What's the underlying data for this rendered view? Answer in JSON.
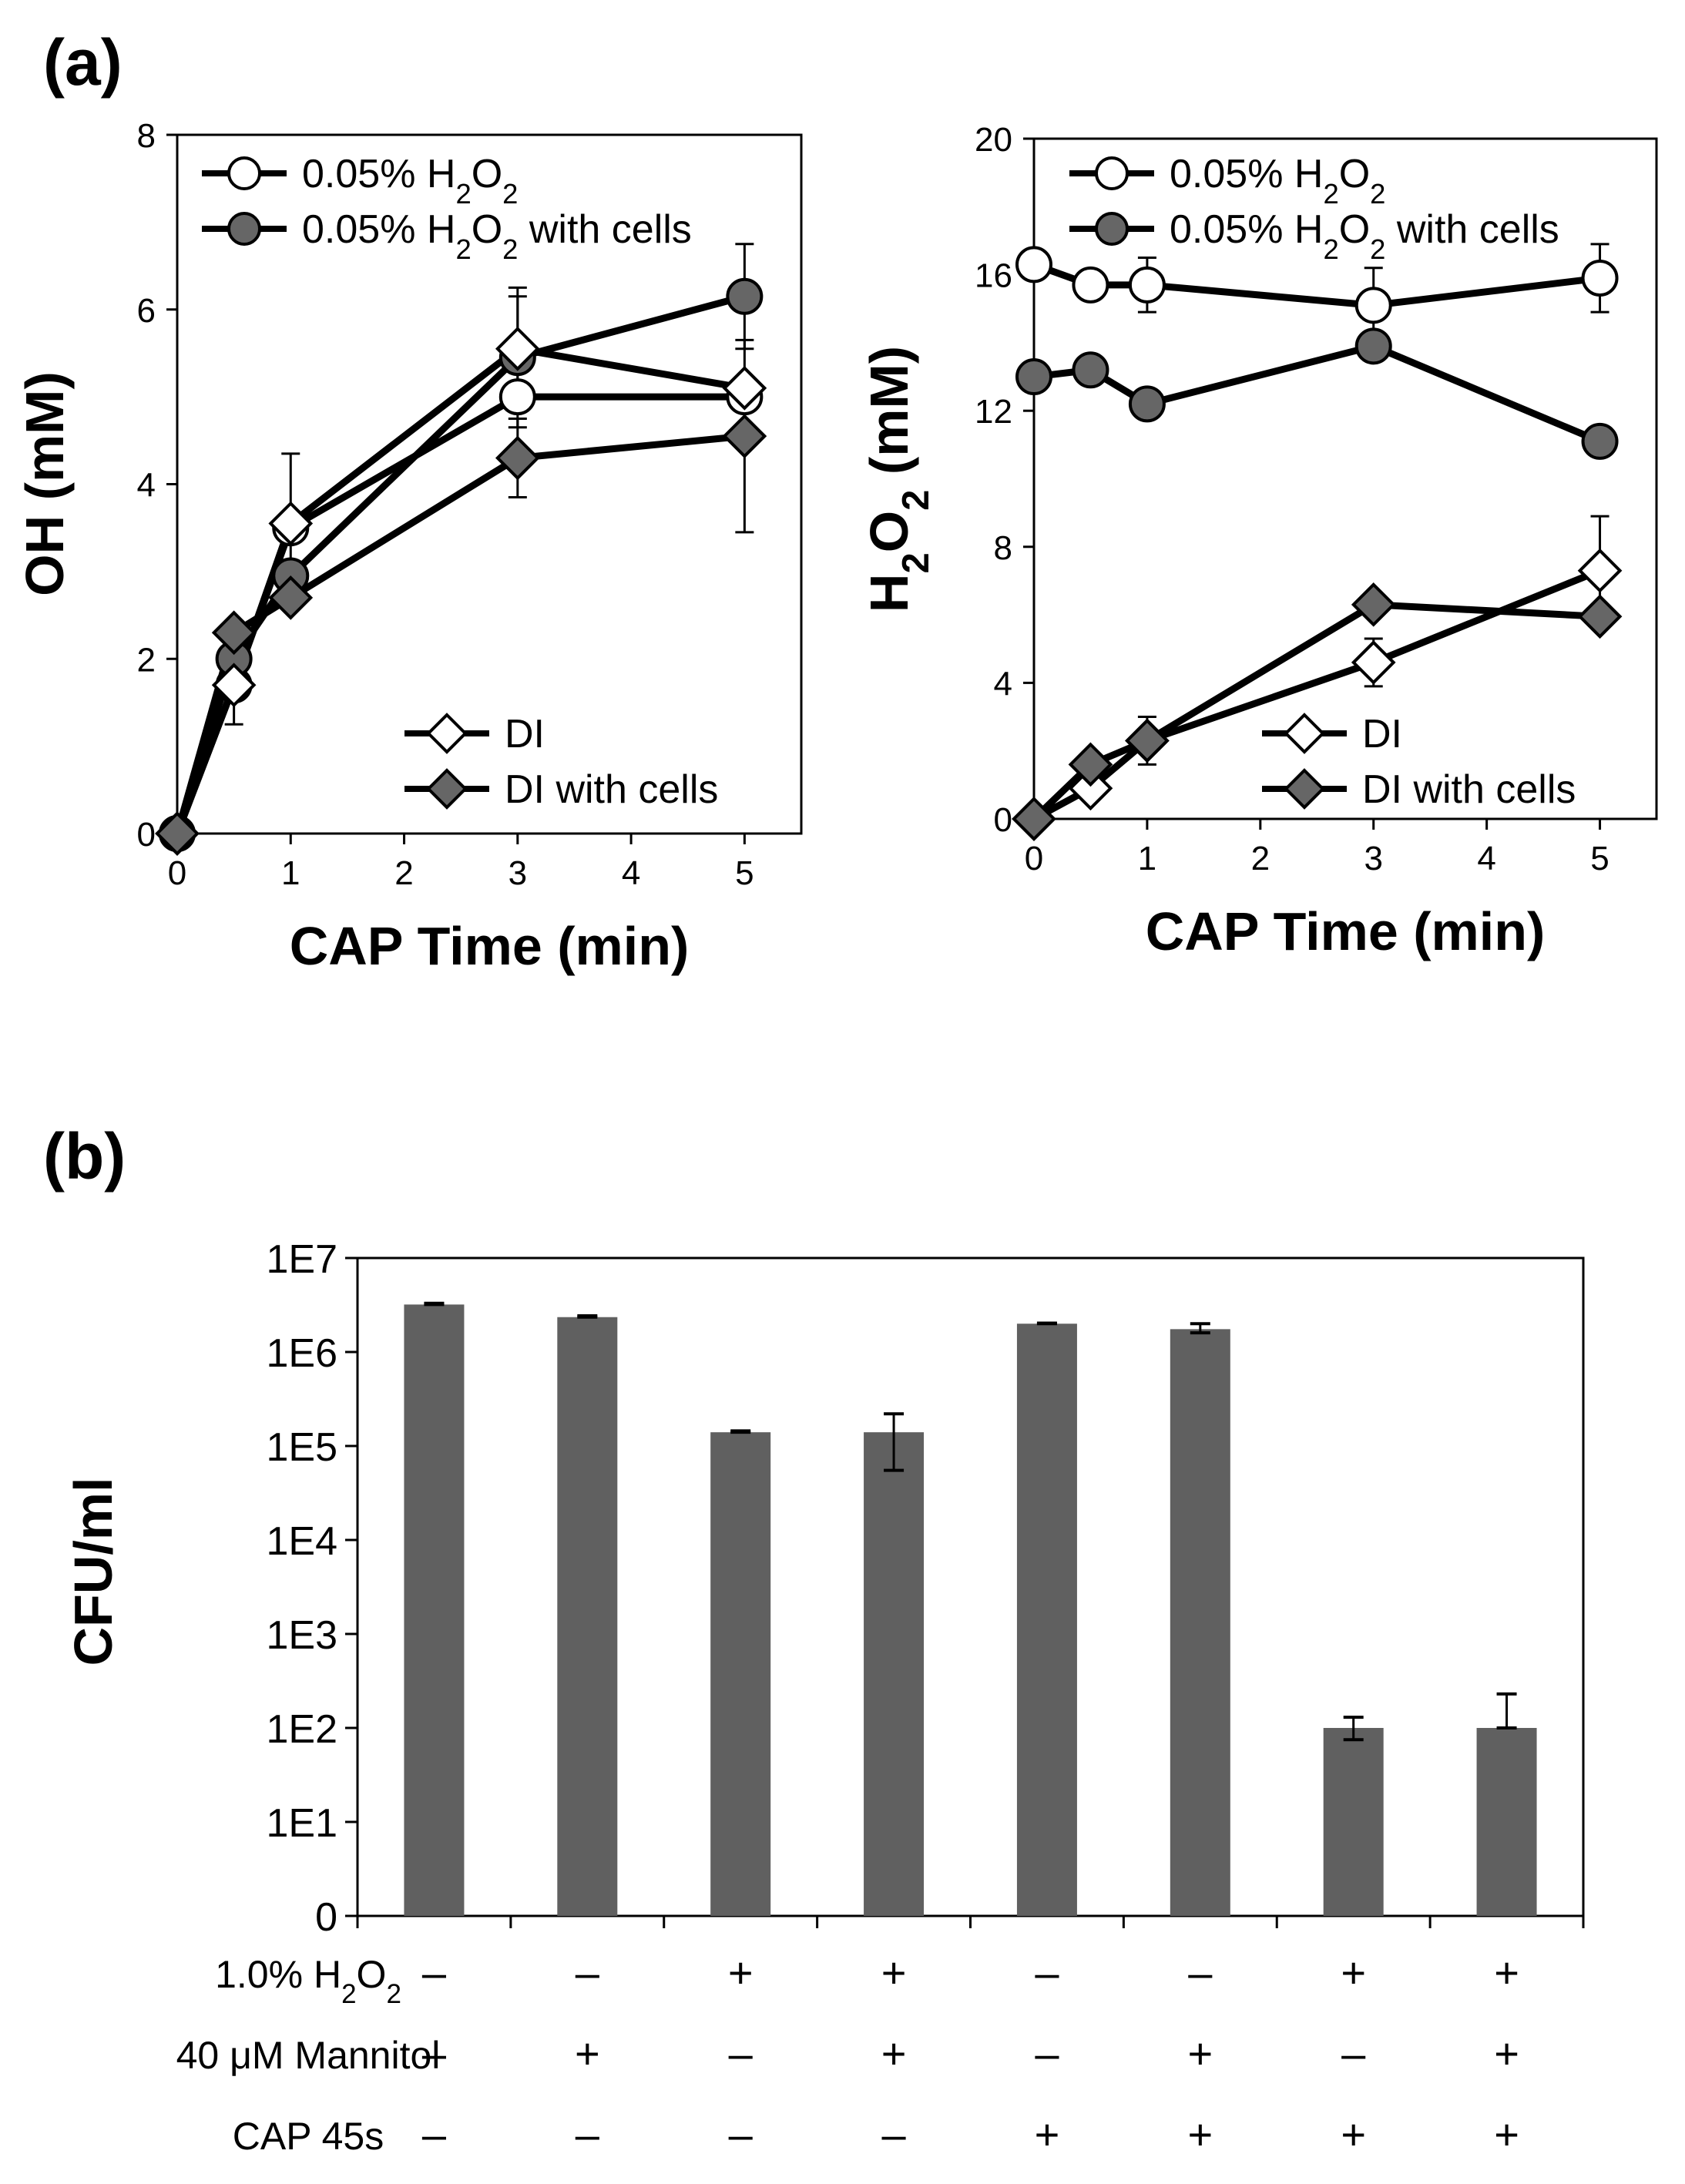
{
  "colors": {
    "line": "#000000",
    "open": "#ffffff",
    "grey_marker": "#666666",
    "bar": "#606060"
  },
  "chart_data": [
    {
      "id": "oh",
      "panel": "(a)",
      "type": "line",
      "xlabel": "CAP Time (min)",
      "ylabel": "OH (mM)",
      "xlim": [
        0,
        5.5
      ],
      "xticks": [
        0,
        1,
        2,
        3,
        4,
        5
      ],
      "ylim": [
        0,
        8
      ],
      "yticks": [
        0,
        2,
        4,
        6,
        8
      ],
      "legend_top": [
        "0.05% H2O2",
        "0.05% H2O2 with cells"
      ],
      "legend_bottom": [
        "DI",
        "DI with cells"
      ],
      "series": [
        {
          "name": "0.05% H2O2",
          "marker": "circle-open",
          "x": [
            0,
            0.5,
            1,
            3,
            5
          ],
          "y": [
            0,
            1.7,
            3.5,
            5.0,
            5.0
          ],
          "err": [
            0,
            0,
            0,
            0,
            0
          ]
        },
        {
          "name": "0.05% H2O2 with cells",
          "marker": "circle-grey",
          "x": [
            0,
            0.5,
            1,
            3,
            5
          ],
          "y": [
            0,
            2.0,
            2.95,
            5.45,
            6.15
          ],
          "err": [
            0,
            0,
            0,
            0.8,
            0.6
          ]
        },
        {
          "name": "DI",
          "marker": "diamond-open",
          "x": [
            0,
            0.5,
            1,
            3,
            5
          ],
          "y": [
            0,
            1.7,
            3.55,
            5.55,
            5.1
          ],
          "err": [
            0,
            0.45,
            0.8,
            0.6,
            0
          ]
        },
        {
          "name": "DI with cells",
          "marker": "diamond-grey",
          "x": [
            0,
            0.5,
            1,
            3,
            5
          ],
          "y": [
            0,
            2.3,
            2.7,
            4.3,
            4.55
          ],
          "err": [
            0,
            0,
            0,
            0.45,
            1.1
          ]
        }
      ]
    },
    {
      "id": "h2o2",
      "type": "line",
      "xlabel": "CAP Time (min)",
      "ylabel": "H2O2 (mM)",
      "xlim": [
        0,
        5.5
      ],
      "xticks": [
        0,
        1,
        2,
        3,
        4,
        5
      ],
      "ylim": [
        0,
        20
      ],
      "yticks": [
        0,
        4,
        8,
        12,
        16,
        20
      ],
      "legend_top": [
        "0.05% H2O2",
        "0.05% H2O2 with cells"
      ],
      "legend_bottom": [
        "DI",
        "DI with cells"
      ],
      "series": [
        {
          "name": "0.05% H2O2",
          "marker": "circle-open",
          "x": [
            0,
            0.5,
            1,
            3,
            5
          ],
          "y": [
            16.3,
            15.7,
            15.7,
            15.1,
            15.9
          ],
          "err": [
            0,
            0.4,
            0.8,
            1.1,
            1.0
          ]
        },
        {
          "name": "0.05% H2O2 with cells",
          "marker": "circle-grey",
          "x": [
            0,
            0.5,
            1,
            3,
            5
          ],
          "y": [
            13.0,
            13.2,
            12.2,
            13.9,
            11.1
          ],
          "err": [
            0,
            0,
            0,
            0,
            0
          ]
        },
        {
          "name": "DI",
          "marker": "diamond-open",
          "x": [
            0,
            0.5,
            1,
            3,
            5
          ],
          "y": [
            0,
            0.9,
            2.3,
            4.6,
            7.3
          ],
          "err": [
            0,
            0,
            0.7,
            0.7,
            1.6
          ]
        },
        {
          "name": "DI with cells",
          "marker": "diamond-grey",
          "x": [
            0,
            0.5,
            1,
            3,
            5
          ],
          "y": [
            0,
            1.6,
            2.3,
            6.3,
            5.95
          ],
          "err": [
            0,
            0,
            0,
            0,
            0
          ]
        }
      ]
    },
    {
      "id": "cfu",
      "panel": "(b)",
      "type": "bar",
      "ylabel": "CFU/ml",
      "yscale": "log",
      "ylim_exp": [
        0,
        7
      ],
      "yticks": [
        "0",
        "1E1",
        "1E2",
        "1E3",
        "1E4",
        "1E5",
        "1E6",
        "1E7"
      ],
      "values": [
        3200000,
        2350000,
        140000,
        140000,
        2000000,
        1750000,
        100,
        100
      ],
      "err_up": [
        3300000,
        2430000,
        145000,
        220000,
        2030000,
        2000000,
        130,
        230
      ],
      "err_down": [
        3200000,
        2350000,
        140000,
        55000,
        2000000,
        1600000,
        75,
        100
      ],
      "condition_labels": [
        "1.0% H2O2",
        "40 μM Mannitol",
        "CAP 45s"
      ],
      "conditions": [
        [
          "–",
          "–",
          "+",
          "+",
          "–",
          "–",
          "+",
          "+"
        ],
        [
          "–",
          "+",
          "–",
          "+",
          "–",
          "+",
          "–",
          "+"
        ],
        [
          "–",
          "–",
          "–",
          "–",
          "+",
          "+",
          "+",
          "+"
        ]
      ]
    }
  ]
}
